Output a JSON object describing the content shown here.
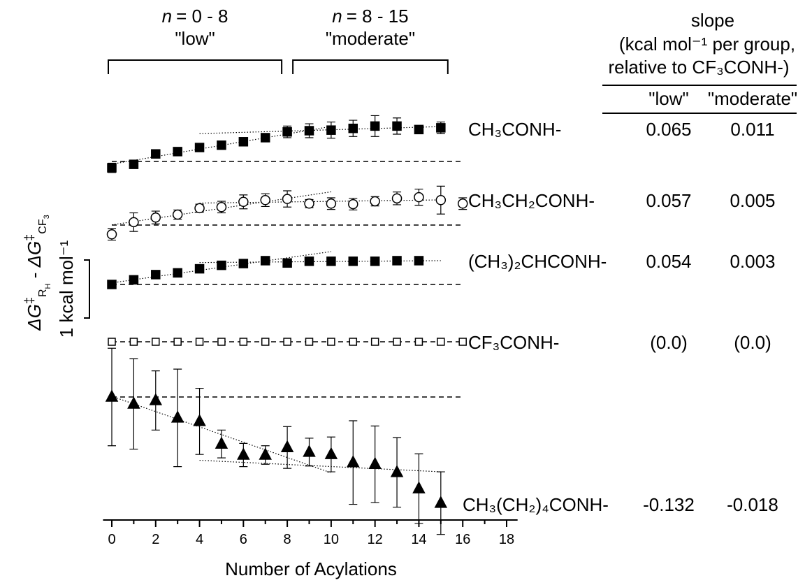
{
  "chart_data": {
    "type": "offset-scatter",
    "x_label": "Number of Acylations",
    "xlim": [
      -0.4,
      18.5
    ],
    "xticks": [
      0,
      2,
      4,
      6,
      8,
      10,
      12,
      14,
      16,
      18
    ],
    "xticks_minor": [
      1,
      3,
      5,
      7,
      9,
      11,
      13,
      15,
      17
    ],
    "y_label": [
      "ΔG",
      "‡",
      "R",
      "H",
      " - ",
      "ΔG",
      "‡",
      "CF",
      "3"
    ],
    "scale_bar": {
      "value": 1,
      "label": "1 kcal mol⁻¹"
    },
    "regimes": [
      {
        "n_label": "n",
        "range_label": "= 0 - 8",
        "name": "\"low\"",
        "range": [
          0,
          8
        ]
      },
      {
        "n_label": "n",
        "range_label": "= 8 - 15",
        "name": "\"moderate\"",
        "range": [
          8,
          15
        ]
      }
    ],
    "slope_header": [
      "slope",
      "(kcal mol⁻¹ per group,",
      "relative to CF₃CONH-)"
    ],
    "color": "#000000",
    "series": [
      {
        "name": "CH₃CONH-",
        "marker": "filled-square",
        "x": [
          0,
          1,
          2,
          3,
          4,
          5,
          6,
          7,
          8,
          9,
          10,
          11,
          12,
          13,
          14,
          15
        ],
        "values": [
          -0.11,
          -0.05,
          0.13,
          0.17,
          0.24,
          0.28,
          0.34,
          0.41,
          0.51,
          0.53,
          0.54,
          0.57,
          0.61,
          0.61,
          0.55,
          0.58
        ],
        "errors": [
          0.08,
          0.07,
          0.04,
          0.04,
          0.04,
          0.07,
          0.05,
          0.05,
          0.1,
          0.12,
          0.14,
          0.14,
          0.18,
          0.14,
          0.05,
          0.1
        ],
        "slopes": [
          0.065,
          0.011
        ]
      },
      {
        "name": "CH₃CH₂CONH-",
        "marker": "open-circle",
        "x": [
          0,
          1,
          2,
          3,
          4,
          5,
          6,
          7,
          8,
          9,
          10,
          11,
          12,
          13,
          14,
          15,
          16
        ],
        "values": [
          -0.16,
          0.05,
          0.13,
          0.18,
          0.29,
          0.31,
          0.4,
          0.43,
          0.45,
          0.37,
          0.37,
          0.36,
          0.41,
          0.46,
          0.48,
          0.43,
          0.37
        ],
        "errors": [
          0.1,
          0.16,
          0.11,
          0.08,
          0.07,
          0.1,
          0.12,
          0.11,
          0.14,
          0.07,
          0.1,
          0.1,
          0.08,
          0.11,
          0.14,
          0.24,
          0.1
        ],
        "slopes": [
          0.057,
          0.005
        ]
      },
      {
        "name": "(CH₃)₂CHCONH-",
        "marker": "filled-square",
        "x": [
          0,
          1,
          2,
          3,
          4,
          5,
          6,
          7,
          8,
          9,
          10,
          11,
          12,
          13,
          14
        ],
        "values": [
          0,
          0.08,
          0.17,
          0.2,
          0.27,
          0.33,
          0.36,
          0.41,
          0.37,
          0.4,
          0.4,
          0.4,
          0.4,
          0.41,
          0.41
        ],
        "errors": [
          0.03,
          0.04,
          0.04,
          0.04,
          0.04,
          0.04,
          0.05,
          0.05,
          0.05,
          0.05,
          0.06,
          0.06,
          0.06,
          0.05,
          0.05
        ],
        "slopes": [
          0.054,
          0.003
        ]
      },
      {
        "name": "CF₃CONH-",
        "marker": "open-square",
        "x": [
          0,
          1,
          2,
          3,
          4,
          5,
          6,
          7,
          8,
          9,
          10,
          11,
          12,
          13,
          14,
          15,
          16
        ],
        "values": [
          0,
          0,
          0,
          0,
          0,
          0,
          0,
          0,
          0,
          0,
          0,
          0,
          0,
          0,
          0,
          0,
          0
        ],
        "errors": [
          0,
          0,
          0,
          0,
          0,
          0,
          0,
          0,
          0,
          0,
          0,
          0,
          0,
          0,
          0,
          0,
          0
        ],
        "slopes": [
          0,
          0
        ],
        "slope_labels": [
          "(0.0)",
          "(0.0)"
        ]
      },
      {
        "name": "CH₃(CH₂)₄CONH-",
        "marker": "filled-triangle",
        "x": [
          0,
          1,
          2,
          3,
          4,
          5,
          6,
          7,
          8,
          9,
          10,
          11,
          12,
          13,
          14,
          15
        ],
        "values": [
          0,
          -0.12,
          -0.06,
          -0.36,
          -0.42,
          -0.81,
          -1.0,
          -1.0,
          -0.87,
          -0.95,
          -0.99,
          -1.13,
          -1.16,
          -1.3,
          -1.58,
          -1.83
        ],
        "errors": [
          0.84,
          0.78,
          0.51,
          0.84,
          0.57,
          0.24,
          0.2,
          0.16,
          0.36,
          0.24,
          0.3,
          0.72,
          0.66,
          0.6,
          0.6,
          0.54
        ],
        "slopes": [
          -0.132,
          -0.018
        ]
      }
    ]
  }
}
